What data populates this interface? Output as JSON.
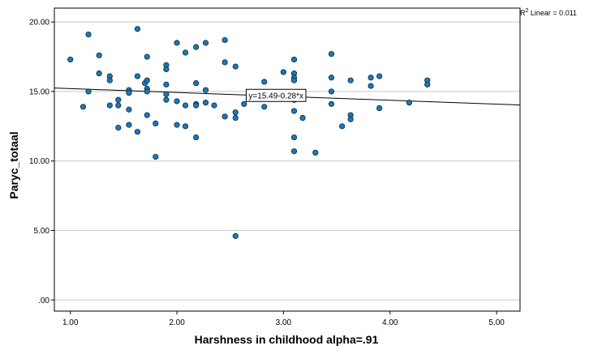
{
  "chart_data": {
    "type": "scatter",
    "xlabel": "Harshness in childhood alpha=.91",
    "ylabel": "Paryc_totaal",
    "xlim": [
      0.85,
      5.22
    ],
    "ylim": [
      -0.8,
      21.0
    ],
    "xticks": [
      1.0,
      2.0,
      3.0,
      4.0,
      5.0
    ],
    "xtick_labels": [
      "1.00",
      "2.00",
      "3.00",
      "4.00",
      "5.00"
    ],
    "yticks": [
      0,
      5,
      10,
      15,
      20
    ],
    "ytick_labels": [
      ".00",
      "5.00",
      "10.00",
      "15.00",
      "20.00"
    ],
    "grid": "horizontal",
    "fit_line": {
      "intercept": 15.49,
      "slope": -0.28
    },
    "equation_label": "y=15.49-0.28*x",
    "r2_label": {
      "prefix": "R",
      "sup": "2",
      "suffix": " Linear = 0.011"
    },
    "point_color": "#1f77b4",
    "points": [
      [
        1.0,
        17.3
      ],
      [
        1.12,
        13.9
      ],
      [
        1.17,
        19.1
      ],
      [
        1.17,
        15.0
      ],
      [
        1.27,
        17.6
      ],
      [
        1.27,
        16.3
      ],
      [
        1.37,
        16.1
      ],
      [
        1.37,
        15.8
      ],
      [
        1.37,
        14.0
      ],
      [
        1.45,
        14.4
      ],
      [
        1.45,
        14.0
      ],
      [
        1.45,
        12.4
      ],
      [
        1.55,
        15.1
      ],
      [
        1.55,
        14.9
      ],
      [
        1.55,
        13.7
      ],
      [
        1.55,
        12.6
      ],
      [
        1.63,
        19.5
      ],
      [
        1.63,
        16.1
      ],
      [
        1.63,
        12.1
      ],
      [
        1.7,
        15.6
      ],
      [
        1.72,
        17.5
      ],
      [
        1.72,
        15.8
      ],
      [
        1.72,
        15.2
      ],
      [
        1.72,
        15.0
      ],
      [
        1.72,
        13.3
      ],
      [
        1.8,
        12.7
      ],
      [
        1.8,
        10.3
      ],
      [
        1.9,
        16.9
      ],
      [
        1.9,
        16.6
      ],
      [
        1.9,
        15.5
      ],
      [
        1.9,
        14.8
      ],
      [
        1.9,
        14.4
      ],
      [
        2.0,
        18.5
      ],
      [
        2.0,
        14.3
      ],
      [
        2.0,
        12.6
      ],
      [
        2.08,
        17.8
      ],
      [
        2.08,
        14.0
      ],
      [
        2.08,
        12.5
      ],
      [
        2.18,
        18.2
      ],
      [
        2.18,
        15.6
      ],
      [
        2.18,
        14.1
      ],
      [
        2.18,
        14.0
      ],
      [
        2.18,
        11.7
      ],
      [
        2.27,
        18.5
      ],
      [
        2.27,
        15.1
      ],
      [
        2.27,
        14.2
      ],
      [
        2.35,
        14.0
      ],
      [
        2.45,
        18.7
      ],
      [
        2.45,
        17.1
      ],
      [
        2.45,
        13.2
      ],
      [
        2.55,
        16.8
      ],
      [
        2.55,
        13.5
      ],
      [
        2.55,
        13.1
      ],
      [
        2.55,
        4.6
      ],
      [
        2.63,
        14.1
      ],
      [
        2.82,
        15.7
      ],
      [
        2.82,
        13.9
      ],
      [
        3.0,
        16.4
      ],
      [
        3.1,
        17.3
      ],
      [
        3.1,
        16.3
      ],
      [
        3.1,
        16.0
      ],
      [
        3.1,
        15.8
      ],
      [
        3.1,
        14.4
      ],
      [
        3.1,
        13.6
      ],
      [
        3.1,
        11.7
      ],
      [
        3.1,
        10.7
      ],
      [
        3.18,
        13.1
      ],
      [
        3.3,
        10.6
      ],
      [
        3.45,
        17.7
      ],
      [
        3.45,
        16.0
      ],
      [
        3.45,
        15.0
      ],
      [
        3.45,
        14.1
      ],
      [
        3.55,
        12.5
      ],
      [
        3.63,
        15.8
      ],
      [
        3.63,
        13.3
      ],
      [
        3.63,
        13.0
      ],
      [
        3.82,
        16.0
      ],
      [
        3.82,
        15.4
      ],
      [
        3.9,
        16.1
      ],
      [
        3.9,
        13.8
      ],
      [
        4.18,
        14.2
      ],
      [
        4.35,
        15.8
      ],
      [
        4.35,
        15.5
      ]
    ]
  }
}
